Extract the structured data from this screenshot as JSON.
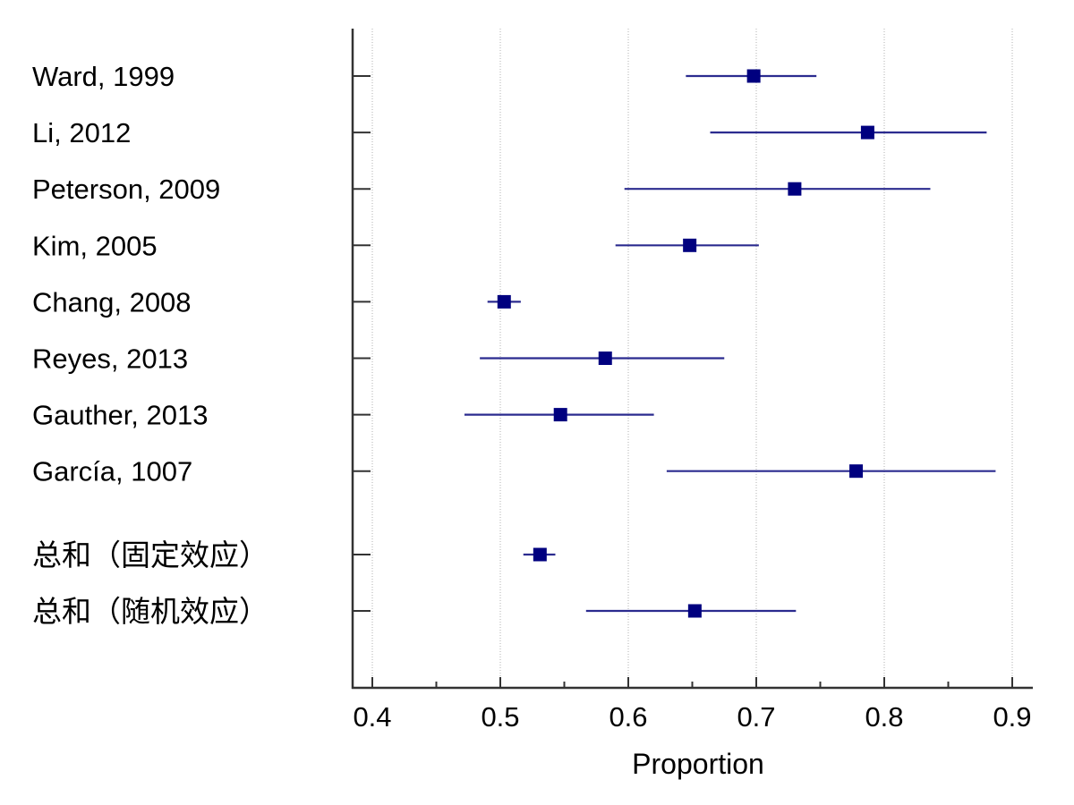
{
  "chart_data": {
    "type": "forest",
    "xlabel": "Proportion",
    "xlim": [
      0.39,
      0.92
    ],
    "xticks": [
      "0.4",
      "0.5",
      "0.6",
      "0.7",
      "0.8",
      "0.9"
    ],
    "minor_ticks": [
      0.45,
      0.55,
      0.65,
      0.75,
      0.85
    ],
    "grid": true,
    "colors": {
      "marker": "#00007f",
      "ci_line": "#2b2b8f",
      "axis": "#333333",
      "grid": "#b0b0b0"
    },
    "studies": [
      {
        "label": "Ward, 1999",
        "estimate": 0.698,
        "ci": [
          0.645,
          0.747
        ]
      },
      {
        "label": "Li, 2012",
        "estimate": 0.787,
        "ci": [
          0.664,
          0.88
        ]
      },
      {
        "label": "Peterson, 2009",
        "estimate": 0.73,
        "ci": [
          0.597,
          0.836
        ]
      },
      {
        "label": "Kim, 2005",
        "estimate": 0.648,
        "ci": [
          0.59,
          0.702
        ]
      },
      {
        "label": "Chang, 2008",
        "estimate": 0.503,
        "ci": [
          0.49,
          0.516
        ]
      },
      {
        "label": "Reyes, 2013",
        "estimate": 0.582,
        "ci": [
          0.484,
          0.675
        ]
      },
      {
        "label": "Gauther, 2013",
        "estimate": 0.547,
        "ci": [
          0.472,
          0.62
        ]
      },
      {
        "label": "García, 1007",
        "estimate": 0.778,
        "ci": [
          0.63,
          0.887
        ]
      }
    ],
    "summaries": [
      {
        "label": "总和（固定效应）",
        "estimate": 0.531,
        "ci": [
          0.518,
          0.543
        ]
      },
      {
        "label": "总和（随机效应）",
        "estimate": 0.652,
        "ci": [
          0.567,
          0.731
        ]
      }
    ]
  }
}
